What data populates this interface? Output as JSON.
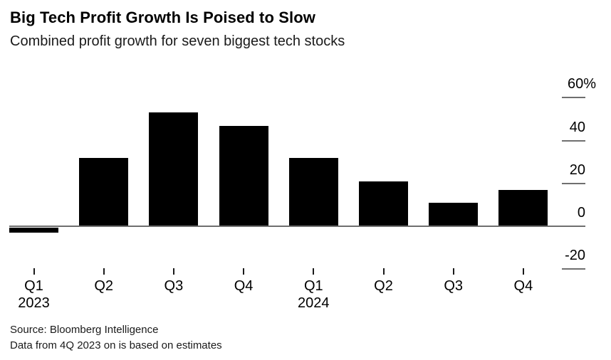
{
  "header": {
    "title": "Big Tech Profit Growth Is Poised to Slow",
    "subtitle": "Combined profit growth for seven biggest tech stocks"
  },
  "footer": {
    "source": "Source: Bloomberg Intelligence",
    "note": "Data from 4Q 2023 on is based on estimates"
  },
  "chart_data": {
    "type": "bar",
    "title": "Big Tech Profit Growth Is Poised to Slow",
    "subtitle": "Combined profit growth for seven biggest tech stocks",
    "unit": "%",
    "categories": [
      "Q1 2023",
      "Q2 2023",
      "Q3 2023",
      "Q4 2023",
      "Q1 2024",
      "Q2 2024",
      "Q3 2024",
      "Q4 2024"
    ],
    "values": [
      -3,
      32,
      53,
      47,
      32,
      21,
      11,
      17
    ],
    "ylim": [
      -20,
      60
    ],
    "grid": false,
    "legend": "none",
    "y_axis_side": "right",
    "y_ticks": [
      {
        "value": 60,
        "label": "60%"
      },
      {
        "value": 40,
        "label": "40"
      },
      {
        "value": 20,
        "label": "20"
      },
      {
        "value": 0,
        "label": "0"
      },
      {
        "value": -20,
        "label": "-20"
      }
    ],
    "x_ticks": [
      {
        "quarter": "Q1",
        "year": "2023"
      },
      {
        "quarter": "Q2",
        "year": ""
      },
      {
        "quarter": "Q3",
        "year": ""
      },
      {
        "quarter": "Q4",
        "year": ""
      },
      {
        "quarter": "Q1",
        "year": "2024"
      },
      {
        "quarter": "Q2",
        "year": ""
      },
      {
        "quarter": "Q3",
        "year": ""
      },
      {
        "quarter": "Q4",
        "year": ""
      }
    ],
    "colors": {
      "bar": "#000000",
      "axis_line": "#6f6f6f",
      "y_tick_dash": "#6f6f6f",
      "x_tick": "#1a1a1a",
      "background": "#ffffff"
    }
  }
}
